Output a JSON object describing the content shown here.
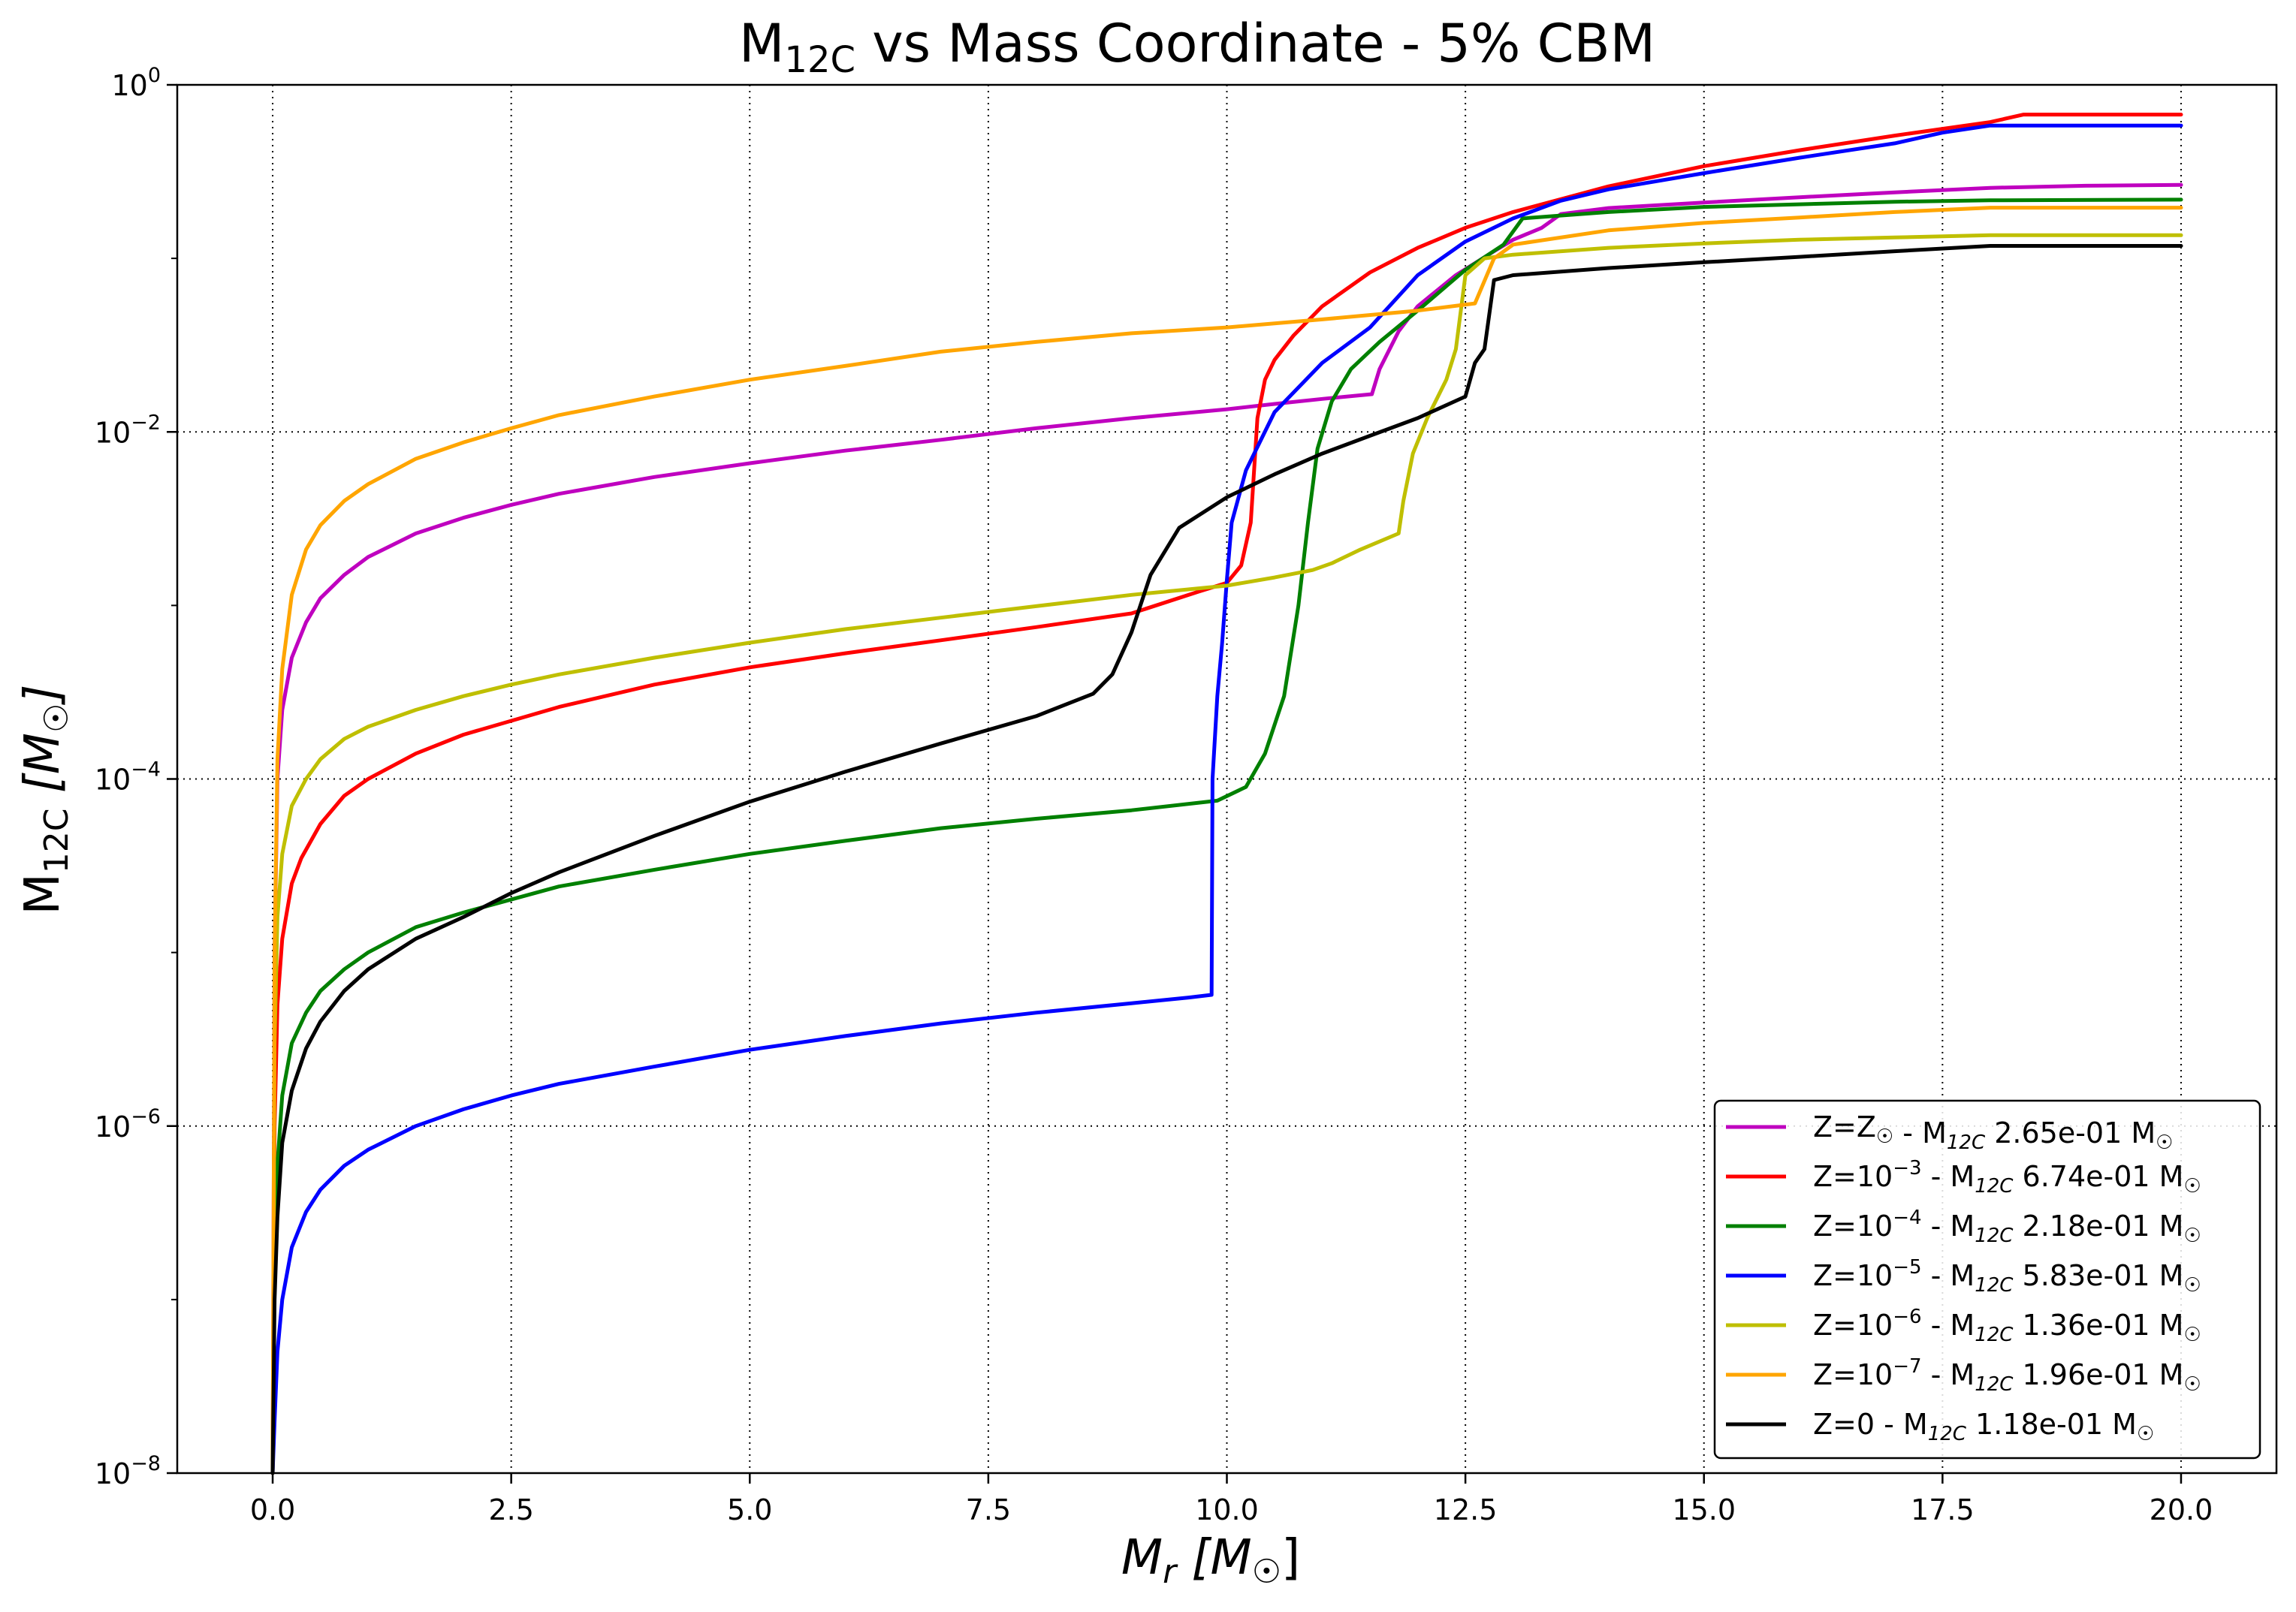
{
  "chart_data": {
    "type": "line",
    "title": "M12C vs Mass Coordinate - 5% CBM",
    "title_parts": {
      "pre": "M",
      "sub": "12C",
      "post": " vs Mass Coordinate - 5% CBM"
    },
    "xlabel": "Mr [M☉]",
    "xlabel_parts": {
      "main": "M",
      "sub": "r",
      "post": " [M",
      "sub2": "☉",
      "close": "]"
    },
    "ylabel": "M12C [M☉]",
    "ylabel_parts": {
      "main": "M",
      "sub": "12C",
      "post": " [M",
      "sub2": "☉",
      "close": "]"
    },
    "xlim": [
      -1.0,
      21.0
    ],
    "ylim": [
      1e-08,
      1
    ],
    "yscale": "log",
    "grid": true,
    "grid_style": "dotted",
    "legend_position": "lower-right",
    "xticks": [
      0.0,
      2.5,
      5.0,
      7.5,
      10.0,
      12.5,
      15.0,
      17.5,
      20.0
    ],
    "xtick_labels": [
      "0.0",
      "2.5",
      "5.0",
      "7.5",
      "10.0",
      "12.5",
      "15.0",
      "17.5",
      "20.0"
    ],
    "yticks": [
      1e-08,
      1e-06,
      0.0001,
      0.01,
      1
    ],
    "ytick_labels": [
      {
        "base": "10",
        "exp": "−8"
      },
      {
        "base": "10",
        "exp": "−6"
      },
      {
        "base": "10",
        "exp": "−4"
      },
      {
        "base": "10",
        "exp": "−2"
      },
      {
        "base": "10",
        "exp": "0"
      }
    ],
    "series": [
      {
        "name": "Z=Z☉ - M12C 2.65e-01 M☉",
        "legend": {
          "a": "Z=Z",
          "a_sub": "☉",
          "b": " - M",
          "b_sub": "12C",
          "c": " 2.65e-01 M",
          "c_sub": "☉"
        },
        "color": "#bf00bf",
        "x": [
          0.0,
          0.02,
          0.05,
          0.1,
          0.2,
          0.35,
          0.5,
          0.75,
          1.0,
          1.5,
          2.0,
          2.5,
          3.0,
          4.0,
          5.0,
          6.0,
          7.0,
          8.0,
          9.0,
          10.0,
          10.5,
          11.0,
          11.52,
          11.6,
          11.8,
          12.0,
          12.4,
          12.8,
          13.0,
          13.3,
          13.5,
          14.0,
          15.0,
          16.0,
          17.0,
          18.0,
          19.0,
          20.0
        ],
        "y": [
          1e-08,
          1e-05,
          0.0001,
          0.00025,
          0.0005,
          0.0008,
          0.0011,
          0.0015,
          0.0019,
          0.0026,
          0.0032,
          0.0038,
          0.0044,
          0.0055,
          0.0066,
          0.0078,
          0.009,
          0.0105,
          0.012,
          0.0135,
          0.0145,
          0.0155,
          0.0165,
          0.023,
          0.038,
          0.053,
          0.08,
          0.11,
          0.128,
          0.15,
          0.18,
          0.195,
          0.21,
          0.225,
          0.24,
          0.255,
          0.262,
          0.265
        ]
      },
      {
        "name": "Z=10⁻³ - M12C 6.74e-01 M☉",
        "legend": {
          "a": "Z=10",
          "a_sup": "−3",
          "b": " - M",
          "b_sub": "12C",
          "c": " 6.74e-01 M",
          "c_sub": "☉"
        },
        "color": "#ff0000",
        "x": [
          0.0,
          0.02,
          0.05,
          0.1,
          0.2,
          0.3,
          0.5,
          0.75,
          1.0,
          1.5,
          2.0,
          3.0,
          4.0,
          5.0,
          6.0,
          7.0,
          8.0,
          9.0,
          9.7,
          10.0,
          10.15,
          10.25,
          10.32,
          10.4,
          10.5,
          10.7,
          11.0,
          11.5,
          12.0,
          12.5,
          13.0,
          14.0,
          15.0,
          16.0,
          17.0,
          18.0,
          18.35,
          19.0,
          20.0
        ],
        "y": [
          1e-08,
          1e-06,
          5e-06,
          1.2e-05,
          2.5e-05,
          3.5e-05,
          5.5e-05,
          8e-05,
          0.0001,
          0.00014,
          0.00018,
          0.00026,
          0.00035,
          0.00044,
          0.00053,
          0.00063,
          0.00075,
          0.0009,
          0.0012,
          0.00135,
          0.0017,
          0.003,
          0.012,
          0.02,
          0.026,
          0.036,
          0.053,
          0.083,
          0.115,
          0.15,
          0.185,
          0.26,
          0.34,
          0.42,
          0.51,
          0.61,
          0.674,
          0.674,
          0.674
        ]
      },
      {
        "name": "Z=10⁻⁴ - M12C 2.18e-01 M☉",
        "legend": {
          "a": "Z=10",
          "a_sup": "−4",
          "b": " - M",
          "b_sub": "12C",
          "c": " 2.18e-01 M",
          "c_sub": "☉"
        },
        "color": "#008000",
        "x": [
          0.0,
          0.02,
          0.05,
          0.1,
          0.2,
          0.35,
          0.5,
          0.75,
          1.0,
          1.5,
          2.0,
          3.0,
          4.0,
          5.0,
          6.0,
          7.0,
          8.0,
          9.0,
          9.9,
          10.2,
          10.4,
          10.6,
          10.75,
          10.85,
          10.95,
          11.1,
          11.3,
          11.6,
          12.0,
          12.5,
          12.9,
          13.1,
          14.0,
          15.0,
          16.0,
          17.0,
          18.0,
          20.0
        ],
        "y": [
          1e-08,
          2e-07,
          6e-07,
          1.5e-06,
          3e-06,
          4.5e-06,
          6e-06,
          8e-06,
          1e-05,
          1.4e-05,
          1.7e-05,
          2.4e-05,
          3e-05,
          3.7e-05,
          4.4e-05,
          5.2e-05,
          5.9e-05,
          6.6e-05,
          7.5e-05,
          9e-05,
          0.00014,
          0.0003,
          0.001,
          0.003,
          0.008,
          0.015,
          0.023,
          0.033,
          0.05,
          0.086,
          0.12,
          0.17,
          0.185,
          0.198,
          0.205,
          0.212,
          0.216,
          0.218
        ]
      },
      {
        "name": "Z=10⁻⁵ - M12C 5.83e-01 M☉",
        "legend": {
          "a": "Z=10",
          "a_sup": "−5",
          "b": " - M",
          "b_sub": "12C",
          "c": " 5.83e-01 M",
          "c_sub": "☉"
        },
        "color": "#0000ff",
        "x": [
          0.0,
          0.02,
          0.05,
          0.1,
          0.2,
          0.35,
          0.5,
          0.75,
          1.0,
          1.5,
          2.0,
          2.5,
          3.0,
          4.0,
          5.0,
          6.0,
          7.0,
          8.0,
          9.0,
          9.6,
          9.84,
          9.85,
          9.9,
          9.95,
          10.0,
          10.05,
          10.2,
          10.5,
          11.0,
          11.5,
          12.0,
          12.5,
          13.0,
          13.5,
          14.0,
          15.0,
          16.0,
          17.0,
          17.5,
          18.0,
          20.0
        ],
        "y": [
          1e-08,
          2e-08,
          5e-08,
          1e-07,
          2e-07,
          3.2e-07,
          4.3e-07,
          5.9e-07,
          7.3e-07,
          1e-06,
          1.25e-06,
          1.5e-06,
          1.75e-06,
          2.2e-06,
          2.75e-06,
          3.3e-06,
          3.9e-06,
          4.5e-06,
          5.1e-06,
          5.5e-06,
          5.7e-06,
          0.0001,
          0.0003,
          0.0006,
          0.0014,
          0.003,
          0.006,
          0.013,
          0.025,
          0.04,
          0.08,
          0.125,
          0.17,
          0.215,
          0.25,
          0.31,
          0.38,
          0.46,
          0.53,
          0.583,
          0.583
        ]
      },
      {
        "name": "Z=10⁻⁶ - M12C 1.36e-01 M☉",
        "legend": {
          "a": "Z=10",
          "a_sup": "−6",
          "b": " - M",
          "b_sub": "12C",
          "c": " 1.36e-01 M",
          "c_sub": "☉"
        },
        "color": "#bfbf00",
        "x": [
          0.0,
          0.02,
          0.05,
          0.1,
          0.2,
          0.35,
          0.5,
          0.75,
          1.0,
          1.5,
          2.0,
          2.5,
          3.0,
          4.0,
          5.0,
          6.0,
          7.0,
          8.0,
          9.0,
          10.0,
          10.5,
          10.9,
          11.1,
          11.4,
          11.8,
          11.85,
          11.95,
          12.1,
          12.3,
          12.4,
          12.5,
          12.7,
          13.0,
          14.0,
          15.0,
          16.0,
          17.0,
          18.0,
          20.0
        ],
        "y": [
          1e-08,
          3e-06,
          1.6e-05,
          3.7e-05,
          7e-05,
          0.0001,
          0.00013,
          0.00017,
          0.0002,
          0.00025,
          0.0003,
          0.00035,
          0.0004,
          0.0005,
          0.00061,
          0.00073,
          0.00085,
          0.00099,
          0.00115,
          0.0013,
          0.00145,
          0.0016,
          0.00175,
          0.0021,
          0.0026,
          0.004,
          0.0075,
          0.012,
          0.02,
          0.03,
          0.08,
          0.1,
          0.105,
          0.115,
          0.122,
          0.128,
          0.132,
          0.136,
          0.136
        ]
      },
      {
        "name": "Z=10⁻⁷ - M12C 1.96e-01 M☉",
        "legend": {
          "a": "Z=10",
          "a_sup": "−7",
          "b": " - M",
          "b_sub": "12C",
          "c": " 1.96e-01 M",
          "c_sub": "☉"
        },
        "color": "#ffa500",
        "x": [
          0.0,
          0.02,
          0.05,
          0.1,
          0.2,
          0.35,
          0.5,
          0.75,
          1.0,
          1.5,
          2.0,
          2.5,
          3.0,
          4.0,
          5.0,
          6.0,
          7.0,
          8.0,
          9.0,
          10.0,
          11.0,
          12.0,
          12.6,
          12.8,
          13.0,
          14.0,
          15.0,
          16.0,
          17.0,
          18.0,
          20.0
        ],
        "y": [
          1e-08,
          1e-05,
          0.00013,
          0.00043,
          0.00115,
          0.0021,
          0.0029,
          0.004,
          0.005,
          0.007,
          0.0087,
          0.0105,
          0.0125,
          0.016,
          0.02,
          0.024,
          0.029,
          0.033,
          0.037,
          0.04,
          0.0445,
          0.05,
          0.055,
          0.1,
          0.12,
          0.145,
          0.16,
          0.172,
          0.185,
          0.196,
          0.196
        ]
      },
      {
        "name": "Z=0 - M12C 1.18e-01 M☉",
        "legend": {
          "a": "Z=0",
          "b": " - M",
          "b_sub": "12C",
          "c": " 1.18e-01 M",
          "c_sub": "☉"
        },
        "color": "#000000",
        "x": [
          0.0,
          0.02,
          0.05,
          0.1,
          0.2,
          0.35,
          0.5,
          0.75,
          1.0,
          1.5,
          2.0,
          2.5,
          3.0,
          4.0,
          5.0,
          6.0,
          7.0,
          8.0,
          8.6,
          8.8,
          9.0,
          9.2,
          9.5,
          10.0,
          10.5,
          11.0,
          11.5,
          12.0,
          12.5,
          12.6,
          12.7,
          12.8,
          13.0,
          14.0,
          15.0,
          16.0,
          17.0,
          18.0,
          20.0
        ],
        "y": [
          1e-08,
          1e-07,
          3e-07,
          8e-07,
          1.6e-06,
          2.8e-06,
          4e-06,
          6e-06,
          8e-06,
          1.2e-05,
          1.6e-05,
          2.2e-05,
          2.9e-05,
          4.7e-05,
          7.4e-05,
          0.00011,
          0.00016,
          0.00023,
          0.00031,
          0.0004,
          0.0007,
          0.0015,
          0.0028,
          0.0042,
          0.0057,
          0.0075,
          0.0095,
          0.012,
          0.016,
          0.025,
          0.03,
          0.075,
          0.08,
          0.088,
          0.095,
          0.102,
          0.11,
          0.118,
          0.118
        ]
      }
    ]
  }
}
